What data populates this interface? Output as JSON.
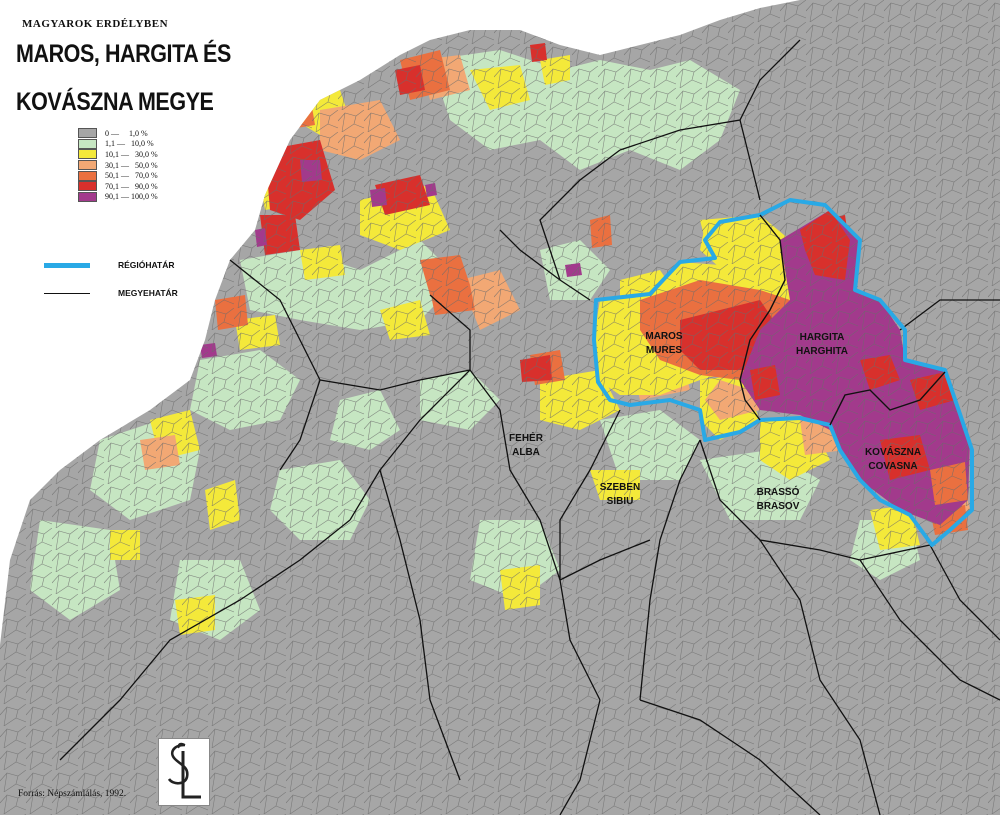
{
  "map": {
    "supertitle": "MAGYAROK ERDÉLYBEN",
    "title_line1": "MAROS, HARGITA ÉS",
    "title_line2": "KOVÁSZNA MEGYE",
    "source": "Forrás: Népszámlálás, 1992.",
    "logo": "SL",
    "legend": [
      {
        "range": "0 —     1,0 %",
        "color": "#a6a6a6"
      },
      {
        "range": "1,1 —   10,0 %",
        "color": "#c6e6c2"
      },
      {
        "range": "10,1 —   30,0 %",
        "color": "#f4e93a"
      },
      {
        "range": "30,1 —   50,0 %",
        "color": "#f2a874"
      },
      {
        "range": "50,1 —   70,0 %",
        "color": "#ea7040"
      },
      {
        "range": "70,1 —   90,0 %",
        "color": "#d8302c"
      },
      {
        "range": "90,1 — 100,0 %",
        "color": "#a23a8c"
      }
    ],
    "line_legend": {
      "region_border": {
        "label": "RÉGIÓHATÁR",
        "color": "#29a9e6"
      },
      "county_border": {
        "label": "MEGYEHATÁR",
        "color": "#111111"
      }
    },
    "counties": {
      "maros": {
        "hu": "MAROS",
        "ro": "MURES"
      },
      "hargita": {
        "hu": "HARGITA",
        "ro": "HARGHITA"
      },
      "kovaszna": {
        "hu": "KOVÁSZNA",
        "ro": "COVASNA"
      },
      "feher": {
        "hu": "FEHÉR",
        "ro": "ALBA"
      },
      "szeben": {
        "hu": "SZEBEN",
        "ro": "SIBIU"
      },
      "brasso": {
        "hu": "BRASSÓ",
        "ro": "BRASOV"
      }
    },
    "colors": {
      "background": "#ffffff",
      "gray": "#a6a6a6",
      "light_green": "#c6e6c2",
      "yellow": "#f4e93a",
      "light_orange": "#f2a874",
      "orange": "#ea7040",
      "red": "#d8302c",
      "purple": "#a23a8c",
      "region_border": "#29a9e6"
    }
  }
}
